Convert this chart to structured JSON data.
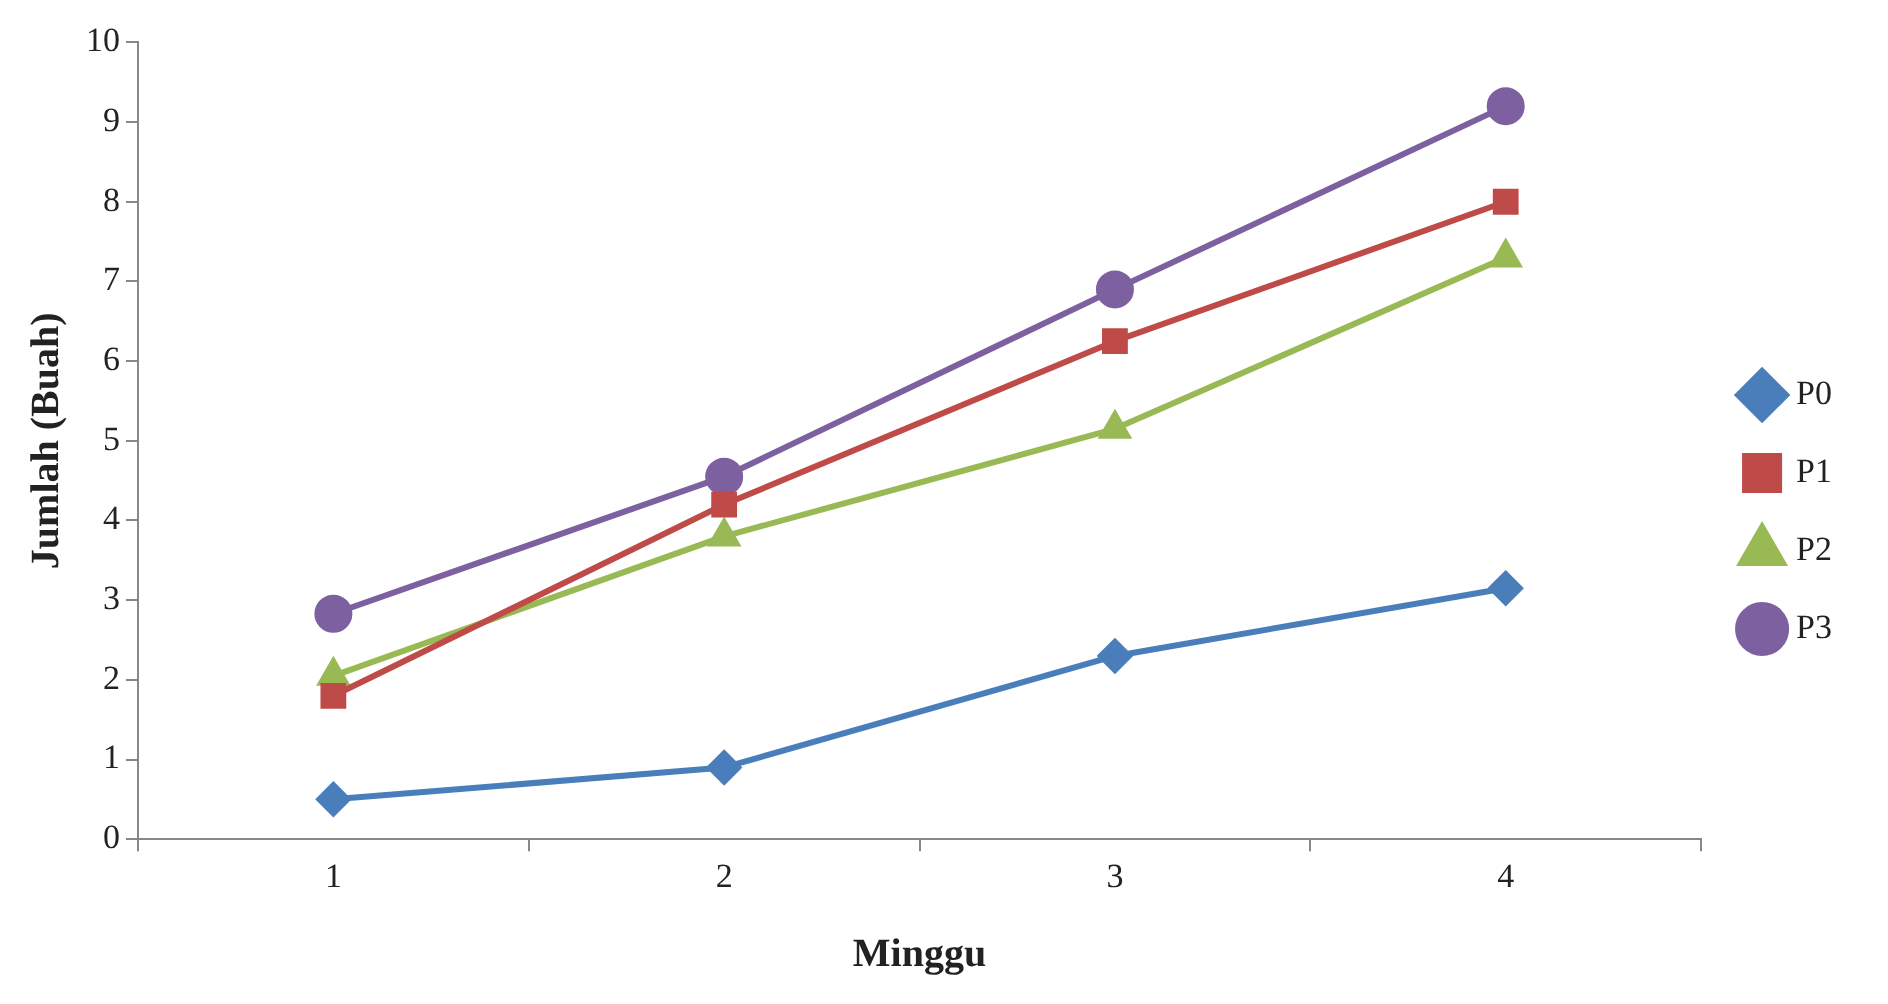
{
  "chart_data": {
    "type": "line",
    "xlabel": "Minggu",
    "ylabel": "Jumlah (Buah)",
    "categories": [
      "1",
      "2",
      "3",
      "4"
    ],
    "ylim": [
      0,
      10
    ],
    "yticks": [
      0,
      1,
      2,
      3,
      4,
      5,
      6,
      7,
      8,
      9,
      10
    ],
    "grid": false,
    "legend": "right",
    "line_style": "solid",
    "series": [
      {
        "name": "P0",
        "color": "#4a7ebb",
        "marker": "diamond",
        "values": [
          0.5,
          0.9,
          2.3,
          3.15
        ]
      },
      {
        "name": "P1",
        "color": "#be4b48",
        "marker": "square",
        "values": [
          1.8,
          4.2,
          6.25,
          8.0
        ]
      },
      {
        "name": "P2",
        "color": "#98b954",
        "marker": "triangle",
        "values": [
          2.05,
          3.8,
          5.15,
          7.3
        ]
      },
      {
        "name": "P3",
        "color": "#7d60a0",
        "marker": "circle",
        "values": [
          2.83,
          4.55,
          6.9,
          9.2
        ]
      }
    ]
  }
}
